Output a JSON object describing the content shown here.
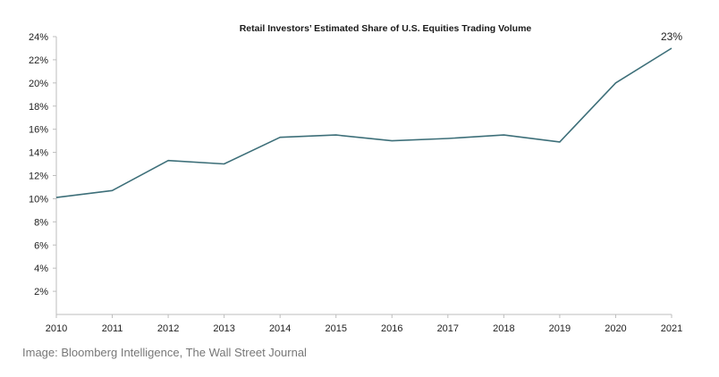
{
  "chart_data": {
    "type": "line",
    "title": "Retail Investors’ Estimated Share of U.S. Equities Trading Volume",
    "xlabel": "",
    "ylabel": "",
    "categories": [
      "2010",
      "2011",
      "2012",
      "2013",
      "2014",
      "2015",
      "2016",
      "2017",
      "2018",
      "2019",
      "2020",
      "2021"
    ],
    "series": [
      {
        "values": [
          10.1,
          10.7,
          13.3,
          13.0,
          15.3,
          15.5,
          15.0,
          15.2,
          15.5,
          14.9,
          20.0,
          23.0
        ]
      }
    ],
    "ylim": [
      0,
      24
    ],
    "yticks": [
      2,
      4,
      6,
      8,
      10,
      12,
      14,
      16,
      18,
      20,
      22,
      24
    ],
    "ytick_labels": [
      "2%",
      "4%",
      "6%",
      "8%",
      "10%",
      "12%",
      "14%",
      "16%",
      "18%",
      "20%",
      "22%",
      "24%"
    ],
    "annotation": {
      "category": "2021",
      "text": "23%"
    },
    "line_color": "#3d6f79",
    "grid": false,
    "legend": "none"
  },
  "caption": "Image: Bloomberg Intelligence, The Wall Street Journal"
}
